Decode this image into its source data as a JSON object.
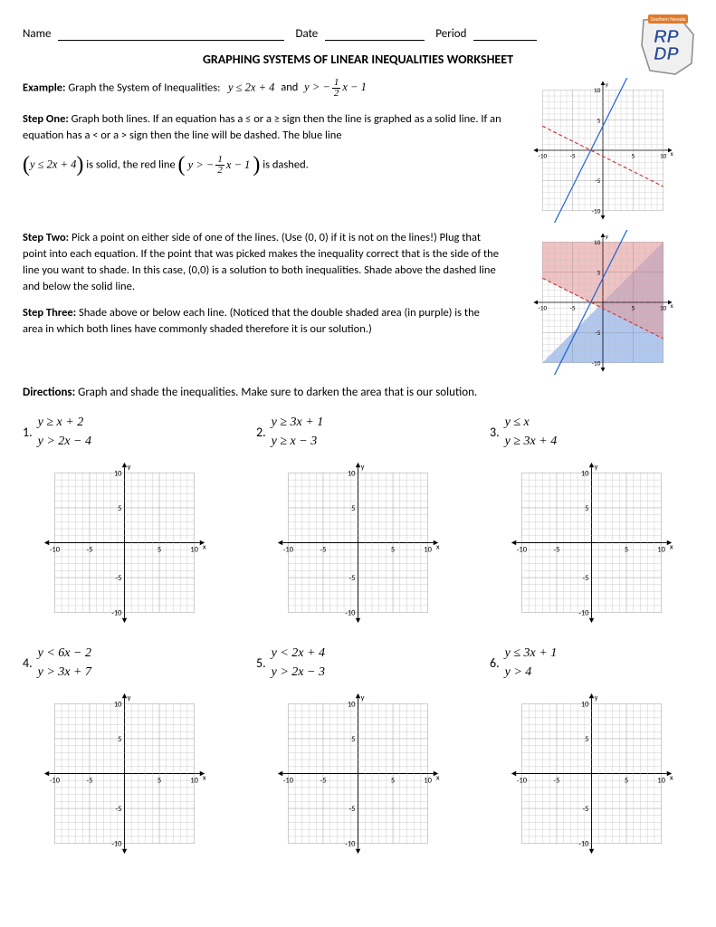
{
  "header": {
    "name_label": "Name",
    "date_label": "Date",
    "period_label": "Period",
    "name_blank_width": 250,
    "date_blank_width": 110,
    "period_blank_width": 70
  },
  "title": "GRAPHING SYSTEMS OF LINEAR INEQUALITIES WORKSHEET",
  "example": {
    "label": "Example:",
    "text": "Graph the System of Inequalities:",
    "eq1_html": "y ≤ 2x + 4",
    "and": "and",
    "eq2_prefix": "y > −",
    "eq2_frac_num": "1",
    "eq2_frac_den": "2",
    "eq2_suffix": "x − 1"
  },
  "step1": {
    "label": "Step One:",
    "text1": "Graph both lines.  If an equation has a ≤ or a ≥ sign then the line is graphed as a solid line.  If an equation has a < or a > sign then the line will be dashed.  The blue line",
    "eq1": "y ≤ 2x + 4",
    "mid": "is solid, the red line",
    "eq2_prefix": "y > −",
    "eq2_frac_num": "1",
    "eq2_frac_den": "2",
    "eq2_suffix": "x − 1",
    "end": "is dashed."
  },
  "step2": {
    "label": "Step Two:",
    "text": "Pick a point on either side of one of the lines.  (Use (0, 0) if it is not on the lines!)  Plug that point into each equation.  If the point that was picked makes the inequality correct that is the side of the line you want to shade. In this case, (0,0) is a solution to both inequalities.  Shade above the dashed line and below the solid line."
  },
  "step3": {
    "label": "Step Three:",
    "text": "Shade above or below each line.  (Noticed that the double shaded area (in purple) is the area in which both lines have commonly shaded therefore it is our solution.)"
  },
  "directions": {
    "label": "Directions:",
    "text": "Graph and shade the inequalities.  Make sure to darken the area that is our solution."
  },
  "grid": {
    "min": -10,
    "max": 10,
    "step": 1,
    "major_step": 5,
    "ticks": [
      -10,
      -5,
      5,
      10
    ],
    "axis_color": "#000000",
    "grid_color": "#bfbfbf",
    "major_grid_color": "#808080",
    "label_color": "#000000",
    "label_fontsize": 7
  },
  "example_graph1": {
    "blue_line": {
      "slope": 2,
      "intercept": 4,
      "color": "#1f5fd6",
      "dashed": false,
      "width": 1.8
    },
    "red_line": {
      "slope": -0.5,
      "intercept": -1,
      "color": "#d63a3a",
      "dashed": true,
      "width": 1.8
    },
    "shade": false
  },
  "example_graph2": {
    "blue_line": {
      "slope": 2,
      "intercept": 4,
      "color": "#1f5fd6",
      "dashed": false,
      "width": 1.8
    },
    "red_line": {
      "slope": -0.5,
      "intercept": -1,
      "color": "#d63a3a",
      "dashed": true,
      "width": 1.8
    },
    "shade": true,
    "shade_blue": "#7aa3e8",
    "shade_red": "#e89a9a",
    "shade_purple": "#b090c8",
    "opacity": 0.6
  },
  "problems_row1": [
    {
      "num": "1.",
      "eq1": "y ≥ x + 2",
      "eq2": "y > 2x − 4"
    },
    {
      "num": "2.",
      "eq1": "y ≥ 3x + 1",
      "eq2": "y ≥ x − 3"
    },
    {
      "num": "3.",
      "eq1": "y ≤ x",
      "eq2": "y ≥ 3x + 4"
    }
  ],
  "problems_row2": [
    {
      "num": "4.",
      "eq1": "y < 6x − 2",
      "eq2": "y > 3x + 7"
    },
    {
      "num": "5.",
      "eq1": "y < 2x + 4",
      "eq2": "y > 2x − 3"
    },
    {
      "num": "6.",
      "eq1": "y ≤ 3x + 1",
      "eq2": "y > 4"
    }
  ],
  "logo": {
    "text_line1": "RP",
    "text_line2": "DP",
    "banner_text": "Southern Nevada",
    "blue": "#2a4b9a",
    "orange": "#e07b2a",
    "outline": "#8a8a8a"
  }
}
